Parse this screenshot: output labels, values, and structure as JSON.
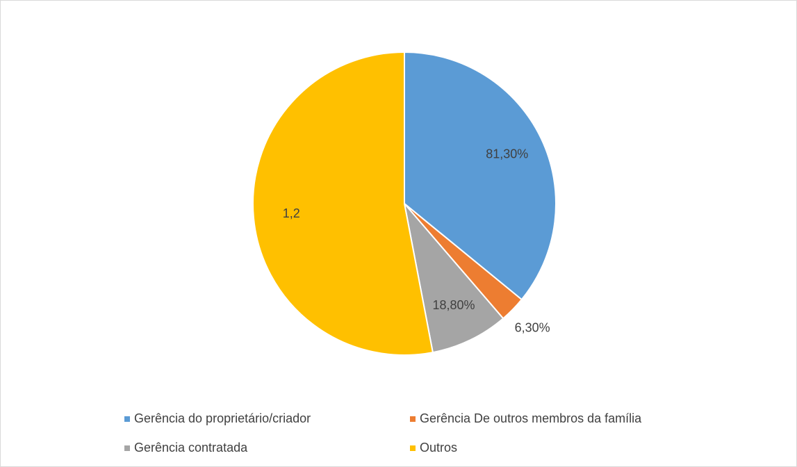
{
  "chart_data": {
    "type": "pie",
    "categories": [
      "Gerência do proprietário/criador",
      "Gerência De outros membros da família",
      "Gerência contratada",
      "Outros"
    ],
    "values": [
      0.813,
      0.063,
      0.188,
      1.2
    ],
    "value_labels": [
      "81,30%",
      "6,30%",
      "18,80%",
      "1,2"
    ],
    "colors": [
      "#5b9bd5",
      "#ed7d31",
      "#a5a5a5",
      "#ffc000"
    ],
    "legend": "bottom"
  }
}
